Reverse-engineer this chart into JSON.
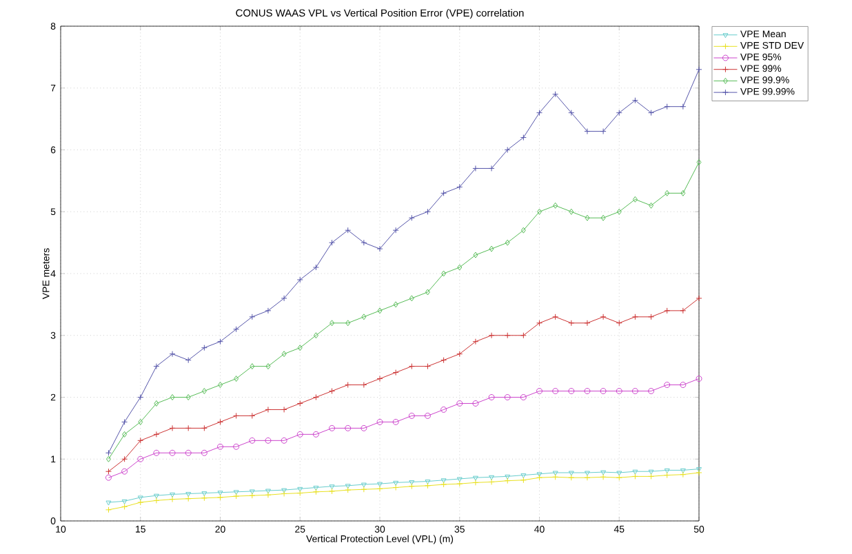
{
  "chart_data": {
    "type": "line",
    "title": "CONUS WAAS VPL vs Vertical Position Error (VPE) correlation",
    "xlabel": "Vertical Protection Level (VPL) (m)",
    "ylabel": "VPE meters",
    "x": [
      13,
      14,
      15,
      16,
      17,
      18,
      19,
      20,
      21,
      22,
      23,
      24,
      25,
      26,
      27,
      28,
      29,
      30,
      31,
      32,
      33,
      34,
      35,
      36,
      37,
      38,
      39,
      40,
      41,
      42,
      43,
      44,
      45,
      46,
      47,
      48,
      49,
      50
    ],
    "xlim": [
      10,
      50
    ],
    "xticks": [
      10,
      15,
      20,
      25,
      30,
      35,
      40,
      45,
      50
    ],
    "ylim": [
      0,
      8
    ],
    "yticks": [
      0,
      1,
      2,
      3,
      4,
      5,
      6,
      7,
      8
    ],
    "grid": true,
    "legend": "top right",
    "line_style": "solid",
    "series": [
      {
        "name": "VPE Mean",
        "color": "#66cccc",
        "marker": "triangle",
        "values": [
          0.3,
          0.32,
          0.38,
          0.41,
          0.43,
          0.44,
          0.45,
          0.46,
          0.47,
          0.48,
          0.49,
          0.5,
          0.52,
          0.54,
          0.56,
          0.57,
          0.59,
          0.6,
          0.62,
          0.63,
          0.64,
          0.66,
          0.68,
          0.7,
          0.71,
          0.72,
          0.74,
          0.76,
          0.78,
          0.78,
          0.78,
          0.79,
          0.78,
          0.8,
          0.8,
          0.82,
          0.82,
          0.84
        ]
      },
      {
        "name": "VPE STD DEV",
        "color": "#e8e020",
        "marker": "cross",
        "values": [
          0.18,
          0.23,
          0.3,
          0.33,
          0.35,
          0.36,
          0.37,
          0.38,
          0.4,
          0.41,
          0.42,
          0.44,
          0.45,
          0.47,
          0.48,
          0.5,
          0.51,
          0.52,
          0.54,
          0.56,
          0.57,
          0.59,
          0.6,
          0.62,
          0.63,
          0.65,
          0.66,
          0.7,
          0.71,
          0.7,
          0.7,
          0.71,
          0.7,
          0.72,
          0.72,
          0.74,
          0.75,
          0.78
        ]
      },
      {
        "name": "VPE 95%",
        "color": "#cc44cc",
        "marker": "circle",
        "values": [
          0.7,
          0.8,
          1.0,
          1.1,
          1.1,
          1.1,
          1.1,
          1.2,
          1.2,
          1.3,
          1.3,
          1.3,
          1.4,
          1.4,
          1.5,
          1.5,
          1.5,
          1.6,
          1.6,
          1.7,
          1.7,
          1.8,
          1.9,
          1.9,
          2.0,
          2.0,
          2.0,
          2.1,
          2.1,
          2.1,
          2.1,
          2.1,
          2.1,
          2.1,
          2.1,
          2.2,
          2.2,
          2.3
        ]
      },
      {
        "name": "VPE 99%",
        "color": "#cc3333",
        "marker": "cross",
        "values": [
          0.8,
          1.0,
          1.3,
          1.4,
          1.5,
          1.5,
          1.5,
          1.6,
          1.7,
          1.7,
          1.8,
          1.8,
          1.9,
          2.0,
          2.1,
          2.2,
          2.2,
          2.3,
          2.4,
          2.5,
          2.5,
          2.6,
          2.7,
          2.9,
          3.0,
          3.0,
          3.0,
          3.2,
          3.3,
          3.2,
          3.2,
          3.3,
          3.2,
          3.3,
          3.3,
          3.4,
          3.4,
          3.6
        ]
      },
      {
        "name": "VPE 99.9%",
        "color": "#55bb55",
        "marker": "diamond",
        "values": [
          1.0,
          1.4,
          1.6,
          1.9,
          2.0,
          2.0,
          2.1,
          2.2,
          2.3,
          2.5,
          2.5,
          2.7,
          2.8,
          3.0,
          3.2,
          3.2,
          3.3,
          3.4,
          3.5,
          3.6,
          3.7,
          4.0,
          4.1,
          4.3,
          4.4,
          4.5,
          4.7,
          5.0,
          5.1,
          5.0,
          4.9,
          4.9,
          5.0,
          5.2,
          5.1,
          5.3,
          5.3,
          5.8
        ]
      },
      {
        "name": "VPE 99.99%",
        "color": "#5555aa",
        "marker": "cross",
        "values": [
          1.1,
          1.6,
          2.0,
          2.5,
          2.7,
          2.6,
          2.8,
          2.9,
          3.1,
          3.3,
          3.4,
          3.6,
          3.9,
          4.1,
          4.5,
          4.7,
          4.5,
          4.4,
          4.7,
          4.9,
          5.0,
          5.3,
          5.4,
          5.7,
          5.7,
          6.0,
          6.2,
          6.6,
          6.9,
          6.6,
          6.3,
          6.3,
          6.6,
          6.8,
          6.6,
          6.7,
          6.7,
          7.3
        ]
      }
    ]
  }
}
